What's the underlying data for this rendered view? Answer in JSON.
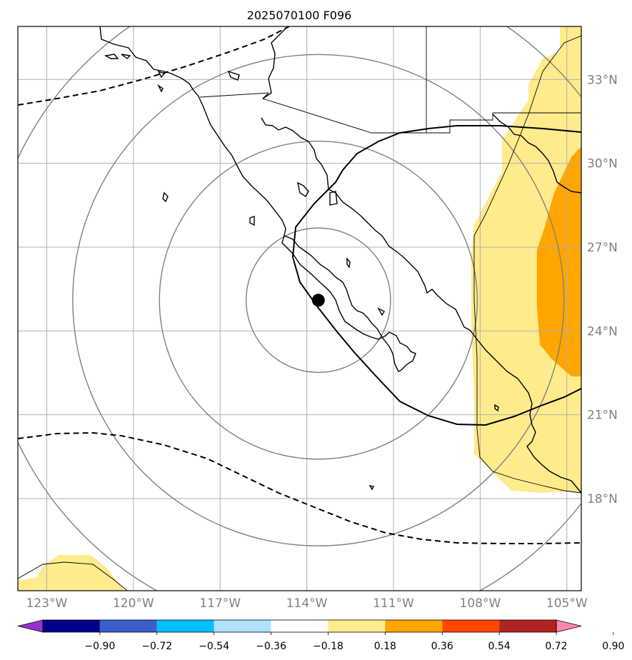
{
  "title": "2025070100 F096",
  "map": {
    "lon_range": [
      -124,
      -104.5
    ],
    "lat_range": [
      14.7,
      34.9
    ],
    "lat_ticks": [
      {
        "value": 33,
        "label": "33°N"
      },
      {
        "value": 30,
        "label": "30°N"
      },
      {
        "value": 27,
        "label": "27°N"
      },
      {
        "value": 24,
        "label": "24°N"
      },
      {
        "value": 21,
        "label": "21°N"
      },
      {
        "value": 18,
        "label": "18°N"
      }
    ],
    "lon_ticks": [
      {
        "value": -123,
        "label": "123°W"
      },
      {
        "value": -120,
        "label": "120°W"
      },
      {
        "value": -117,
        "label": "117°W"
      },
      {
        "value": -114,
        "label": "114°W"
      },
      {
        "value": -111,
        "label": "111°W"
      },
      {
        "value": -108,
        "label": "108°W"
      },
      {
        "value": -105,
        "label": "105°W"
      }
    ],
    "center_marker": {
      "lon": -113.6,
      "lat": 25.1
    },
    "range_rings_deg": [
      2.5,
      5.5,
      8.5,
      11.5
    ],
    "colors": {
      "grid": "#b0b0b0",
      "ring": "#808080",
      "fill_low": "#ffeb8c",
      "fill_mid": "#ffa500"
    }
  },
  "colorbar": {
    "colors": [
      "#9932cc",
      "#00008b",
      "#3a5fcd",
      "#00bfff",
      "#b0e2ff",
      "#ffffff",
      "#ffeb8c",
      "#ffa500",
      "#ff4500",
      "#b22222",
      "#ff88aa"
    ],
    "ticks": [
      "−0.90",
      "−0.72",
      "−0.54",
      "−0.36",
      "−0.18",
      "0.18",
      "0.36",
      "0.54",
      "0.72",
      "0.90"
    ]
  }
}
